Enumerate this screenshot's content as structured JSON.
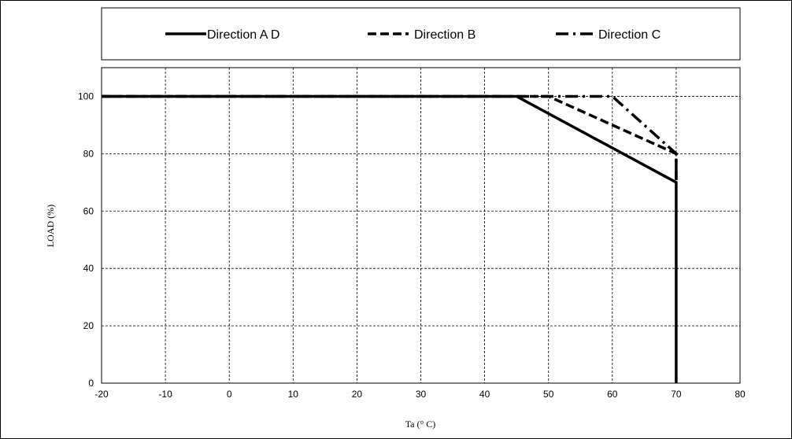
{
  "chart_data": {
    "type": "line",
    "title": "",
    "xlabel": "Ta (° C)",
    "ylabel": "LOAD (%)",
    "xlim": [
      -20,
      80
    ],
    "ylim": [
      0,
      110
    ],
    "xticks": [
      -20,
      -10,
      0,
      10,
      20,
      30,
      40,
      50,
      60,
      70,
      80
    ],
    "yticks": [
      0,
      20,
      40,
      60,
      80,
      100
    ],
    "grid": true,
    "grid_style": "dashed",
    "legend_position": "top",
    "series": [
      {
        "name": "Direction A D",
        "line_style": "solid",
        "color": "#000000",
        "x": [
          -20,
          45,
          70,
          70
        ],
        "y": [
          100,
          100,
          70,
          0
        ]
      },
      {
        "name": "Direction B",
        "line_style": "dashed",
        "color": "#000000",
        "x": [
          -20,
          50,
          70,
          70
        ],
        "y": [
          100,
          100,
          80,
          70
        ]
      },
      {
        "name": "Direction C",
        "line_style": "dash-dot",
        "color": "#000000",
        "x": [
          -20,
          60,
          70,
          70
        ],
        "y": [
          100,
          100,
          80,
          70
        ]
      }
    ]
  }
}
